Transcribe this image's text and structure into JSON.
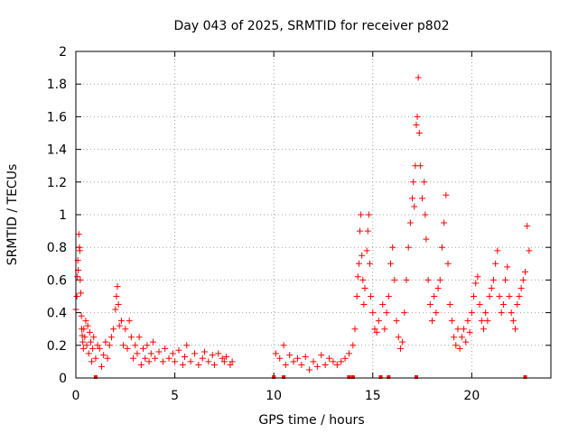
{
  "chart_data": {
    "type": "scatter",
    "title": "Day 043 of 2025, SRMTID for receiver p802",
    "xlabel": "GPS time / hours",
    "ylabel": "SRMTID / TECUs",
    "xlim": [
      0,
      24
    ],
    "ylim": [
      0,
      2
    ],
    "xticks": [
      0,
      5,
      10,
      15,
      20
    ],
    "xtick_labels": [
      "0",
      "5",
      "10",
      "15",
      "20"
    ],
    "yticks": [
      0,
      0.2,
      0.4,
      0.6,
      0.8,
      1,
      1.2,
      1.4,
      1.6,
      1.8,
      2
    ],
    "ytick_labels": [
      "0",
      "0.2",
      "0.4",
      "0.6",
      "0.8",
      "1",
      "1.2",
      "1.4",
      "1.6",
      "1.8",
      "2"
    ],
    "grid": true,
    "marker": "plus",
    "color": "#ff0000",
    "series": [
      {
        "name": "SRMTID",
        "points": [
          [
            0.0,
            0.42
          ],
          [
            0.05,
            0.5
          ],
          [
            0.08,
            0.62
          ],
          [
            0.1,
            0.72
          ],
          [
            0.12,
            0.66
          ],
          [
            0.15,
            0.88
          ],
          [
            0.18,
            0.8
          ],
          [
            0.2,
            0.78
          ],
          [
            0.22,
            0.6
          ],
          [
            0.25,
            0.52
          ],
          [
            0.28,
            0.38
          ],
          [
            0.3,
            0.3
          ],
          [
            0.32,
            0.26
          ],
          [
            0.35,
            0.22
          ],
          [
            0.38,
            0.18
          ],
          [
            0.4,
            0.3
          ],
          [
            0.45,
            0.25
          ],
          [
            0.5,
            0.35
          ],
          [
            0.55,
            0.2
          ],
          [
            0.6,
            0.32
          ],
          [
            0.65,
            0.15
          ],
          [
            0.7,
            0.28
          ],
          [
            0.75,
            0.22
          ],
          [
            0.8,
            0.1
          ],
          [
            0.85,
            0.18
          ],
          [
            0.9,
            0.25
          ],
          [
            1.0,
            0.12
          ],
          [
            1.1,
            0.2
          ],
          [
            1.2,
            0.18
          ],
          [
            1.3,
            0.07
          ],
          [
            1.4,
            0.14
          ],
          [
            1.5,
            0.22
          ],
          [
            1.6,
            0.12
          ],
          [
            1.7,
            0.2
          ],
          [
            1.8,
            0.25
          ],
          [
            1.9,
            0.3
          ],
          [
            2.0,
            0.42
          ],
          [
            2.05,
            0.5
          ],
          [
            2.1,
            0.56
          ],
          [
            2.15,
            0.45
          ],
          [
            2.2,
            0.32
          ],
          [
            2.3,
            0.35
          ],
          [
            2.4,
            0.2
          ],
          [
            2.5,
            0.3
          ],
          [
            2.6,
            0.18
          ],
          [
            2.7,
            0.35
          ],
          [
            2.8,
            0.25
          ],
          [
            2.9,
            0.12
          ],
          [
            3.0,
            0.2
          ],
          [
            3.1,
            0.15
          ],
          [
            3.2,
            0.25
          ],
          [
            3.3,
            0.08
          ],
          [
            3.4,
            0.18
          ],
          [
            3.5,
            0.12
          ],
          [
            3.6,
            0.2
          ],
          [
            3.7,
            0.1
          ],
          [
            3.8,
            0.15
          ],
          [
            3.9,
            0.22
          ],
          [
            4.0,
            0.12
          ],
          [
            4.2,
            0.16
          ],
          [
            4.4,
            0.1
          ],
          [
            4.5,
            0.18
          ],
          [
            4.7,
            0.12
          ],
          [
            4.9,
            0.15
          ],
          [
            5.0,
            0.1
          ],
          [
            5.2,
            0.17
          ],
          [
            5.4,
            0.08
          ],
          [
            5.5,
            0.13
          ],
          [
            5.6,
            0.2
          ],
          [
            5.8,
            0.1
          ],
          [
            6.0,
            0.15
          ],
          [
            6.2,
            0.08
          ],
          [
            6.4,
            0.12
          ],
          [
            6.5,
            0.16
          ],
          [
            6.7,
            0.1
          ],
          [
            6.9,
            0.14
          ],
          [
            7.0,
            0.08
          ],
          [
            7.2,
            0.15
          ],
          [
            7.4,
            0.12
          ],
          [
            7.5,
            0.1
          ],
          [
            7.6,
            0.13
          ],
          [
            7.8,
            0.08
          ],
          [
            7.9,
            0.1
          ],
          [
            10.1,
            0.15
          ],
          [
            10.3,
            0.12
          ],
          [
            10.5,
            0.2
          ],
          [
            10.6,
            0.08
          ],
          [
            10.8,
            0.14
          ],
          [
            11.0,
            0.1
          ],
          [
            11.2,
            0.12
          ],
          [
            11.4,
            0.08
          ],
          [
            11.6,
            0.13
          ],
          [
            11.8,
            0.05
          ],
          [
            12.0,
            0.1
          ],
          [
            12.2,
            0.07
          ],
          [
            12.4,
            0.14
          ],
          [
            12.6,
            0.08
          ],
          [
            12.8,
            0.12
          ],
          [
            13.0,
            0.1
          ],
          [
            13.2,
            0.08
          ],
          [
            13.4,
            0.1
          ],
          [
            13.6,
            0.12
          ],
          [
            13.8,
            0.15
          ],
          [
            14.0,
            0.2
          ],
          [
            14.1,
            0.3
          ],
          [
            14.2,
            0.5
          ],
          [
            14.25,
            0.62
          ],
          [
            14.3,
            0.7
          ],
          [
            14.35,
            0.9
          ],
          [
            14.4,
            1.0
          ],
          [
            14.45,
            0.75
          ],
          [
            14.5,
            0.6
          ],
          [
            14.55,
            0.45
          ],
          [
            14.6,
            0.55
          ],
          [
            14.7,
            0.78
          ],
          [
            14.75,
            0.9
          ],
          [
            14.8,
            1.0
          ],
          [
            14.85,
            0.7
          ],
          [
            14.9,
            0.5
          ],
          [
            15.0,
            0.4
          ],
          [
            15.1,
            0.3
          ],
          [
            15.2,
            0.28
          ],
          [
            15.3,
            0.35
          ],
          [
            15.5,
            0.45
          ],
          [
            15.6,
            0.3
          ],
          [
            15.7,
            0.4
          ],
          [
            15.8,
            0.5
          ],
          [
            15.9,
            0.7
          ],
          [
            16.0,
            0.8
          ],
          [
            16.1,
            0.6
          ],
          [
            16.2,
            0.35
          ],
          [
            16.3,
            0.25
          ],
          [
            16.4,
            0.18
          ],
          [
            16.5,
            0.22
          ],
          [
            16.6,
            0.4
          ],
          [
            16.7,
            0.6
          ],
          [
            16.8,
            0.8
          ],
          [
            16.9,
            0.95
          ],
          [
            17.0,
            1.1
          ],
          [
            17.05,
            1.2
          ],
          [
            17.1,
            1.05
          ],
          [
            17.15,
            1.3
          ],
          [
            17.2,
            1.55
          ],
          [
            17.25,
            1.6
          ],
          [
            17.3,
            1.84
          ],
          [
            17.35,
            1.5
          ],
          [
            17.4,
            1.3
          ],
          [
            17.5,
            1.1
          ],
          [
            17.6,
            1.2
          ],
          [
            17.65,
            1.0
          ],
          [
            17.7,
            0.85
          ],
          [
            17.8,
            0.6
          ],
          [
            17.9,
            0.45
          ],
          [
            18.0,
            0.35
          ],
          [
            18.1,
            0.5
          ],
          [
            18.2,
            0.4
          ],
          [
            18.3,
            0.55
          ],
          [
            18.4,
            0.6
          ],
          [
            18.5,
            0.8
          ],
          [
            18.6,
            0.95
          ],
          [
            18.7,
            1.12
          ],
          [
            18.8,
            0.7
          ],
          [
            18.9,
            0.45
          ],
          [
            19.0,
            0.35
          ],
          [
            19.1,
            0.25
          ],
          [
            19.2,
            0.2
          ],
          [
            19.3,
            0.3
          ],
          [
            19.4,
            0.18
          ],
          [
            19.5,
            0.25
          ],
          [
            19.6,
            0.3
          ],
          [
            19.7,
            0.22
          ],
          [
            19.8,
            0.35
          ],
          [
            19.9,
            0.28
          ],
          [
            20.0,
            0.4
          ],
          [
            20.1,
            0.5
          ],
          [
            20.2,
            0.58
          ],
          [
            20.3,
            0.62
          ],
          [
            20.4,
            0.45
          ],
          [
            20.5,
            0.35
          ],
          [
            20.6,
            0.3
          ],
          [
            20.7,
            0.4
          ],
          [
            20.8,
            0.35
          ],
          [
            20.9,
            0.5
          ],
          [
            21.0,
            0.55
          ],
          [
            21.1,
            0.6
          ],
          [
            21.2,
            0.7
          ],
          [
            21.3,
            0.78
          ],
          [
            21.4,
            0.5
          ],
          [
            21.5,
            0.4
          ],
          [
            21.6,
            0.45
          ],
          [
            21.7,
            0.6
          ],
          [
            21.8,
            0.68
          ],
          [
            21.9,
            0.5
          ],
          [
            22.0,
            0.4
          ],
          [
            22.1,
            0.35
          ],
          [
            22.2,
            0.3
          ],
          [
            22.3,
            0.45
          ],
          [
            22.4,
            0.5
          ],
          [
            22.5,
            0.55
          ],
          [
            22.6,
            0.6
          ],
          [
            22.7,
            0.65
          ],
          [
            22.8,
            0.93
          ],
          [
            22.9,
            0.78
          ]
        ]
      }
    ],
    "baseline_markers_x": [
      1.0,
      10.0,
      10.5,
      13.8,
      14.0,
      15.4,
      15.8,
      17.2,
      22.7
    ]
  }
}
